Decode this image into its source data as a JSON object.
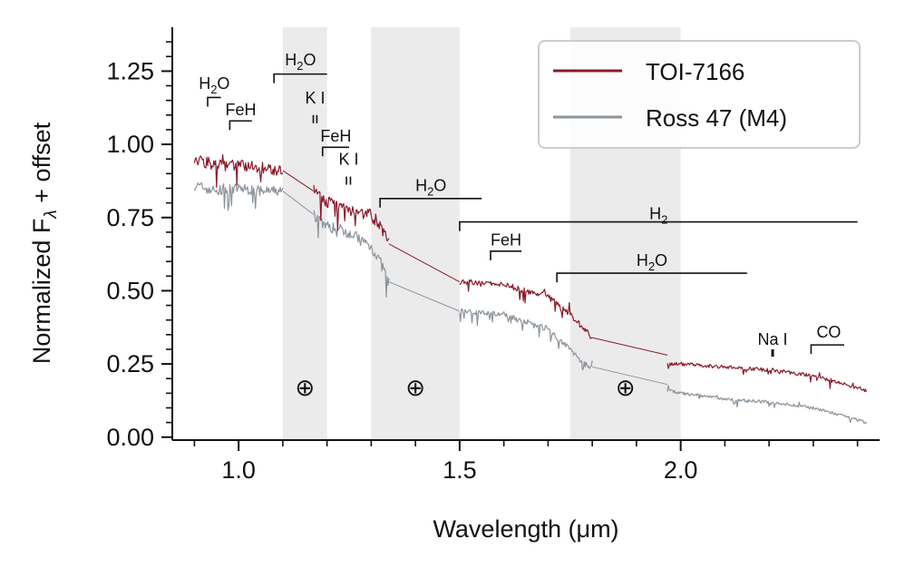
{
  "chart_data": {
    "type": "line",
    "xlabel": "Wavelength (μm)",
    "ylabel": "Normalized F",
    "ylabel_sub": "λ",
    "ylabel_suffix": " + offset",
    "xlim": [
      0.85,
      2.45
    ],
    "ylim": [
      -0.01,
      1.4
    ],
    "x_ticks": [
      1.0,
      1.5,
      2.0
    ],
    "x_tick_labels": [
      "1.0",
      "1.5",
      "2.0"
    ],
    "x_minor_ticks": [
      0.9,
      1.1,
      1.2,
      1.3,
      1.4,
      1.6,
      1.7,
      1.8,
      1.9,
      2.1,
      2.2,
      2.3,
      2.4
    ],
    "y_ticks": [
      0.0,
      0.25,
      0.5,
      0.75,
      1.0,
      1.25
    ],
    "y_tick_labels": [
      "0.00",
      "0.25",
      "0.50",
      "0.75",
      "1.00",
      "1.25"
    ],
    "y_minor_ticks": [
      0.05,
      0.1,
      0.15,
      0.2,
      0.3,
      0.35,
      0.4,
      0.45,
      0.55,
      0.6,
      0.65,
      0.7,
      0.8,
      0.85,
      0.9,
      0.95,
      1.05,
      1.1,
      1.15,
      1.2,
      1.3,
      1.35
    ],
    "telluric_bands": [
      [
        1.1,
        1.2
      ],
      [
        1.3,
        1.5
      ],
      [
        1.75,
        2.0
      ]
    ],
    "telluric_symbols": [
      {
        "x": 1.15,
        "y": 0.17,
        "text": "⊕"
      },
      {
        "x": 1.4,
        "y": 0.17,
        "text": "⊕"
      },
      {
        "x": 1.875,
        "y": 0.17,
        "text": "⊕"
      }
    ],
    "series": [
      {
        "name": "TOI-7166",
        "color": "#8b1a2b",
        "segments": [
          {
            "x": [
              0.9,
              0.95,
              1.0,
              1.05,
              1.1
            ],
            "y": [
              0.95,
              0.93,
              0.93,
              0.92,
              0.91
            ],
            "noise": 0.04,
            "step": 0.002
          },
          {
            "x": [
              1.1,
              1.17
            ],
            "y": [
              0.91,
              0.84
            ]
          },
          {
            "x": [
              1.17,
              1.2,
              1.25,
              1.3,
              1.32,
              1.34
            ],
            "y": [
              0.84,
              0.8,
              0.78,
              0.76,
              0.72,
              0.66
            ],
            "noise": 0.045,
            "step": 0.002
          },
          {
            "x": [
              1.34,
              1.5
            ],
            "y": [
              0.66,
              0.53
            ]
          },
          {
            "x": [
              1.5,
              1.6,
              1.7,
              1.75,
              1.78,
              1.8
            ],
            "y": [
              0.53,
              0.52,
              0.48,
              0.42,
              0.37,
              0.34
            ],
            "noise": 0.02,
            "step": 0.002
          },
          {
            "x": [
              1.8,
              1.97
            ],
            "y": [
              0.34,
              0.28
            ]
          },
          {
            "x": [
              1.97,
              2.0,
              2.1,
              2.2,
              2.3,
              2.42
            ],
            "y": [
              0.25,
              0.25,
              0.24,
              0.23,
              0.21,
              0.16
            ],
            "noise": 0.012,
            "step": 0.002
          }
        ]
      },
      {
        "name": "Ross 47 (M4)",
        "color": "#8c949c",
        "segments": [
          {
            "x": [
              0.9,
              0.95,
              1.0,
              1.05,
              1.1
            ],
            "y": [
              0.86,
              0.84,
              0.85,
              0.84,
              0.84
            ],
            "noise": 0.035,
            "step": 0.002
          },
          {
            "x": [
              1.1,
              1.17
            ],
            "y": [
              0.84,
              0.76
            ]
          },
          {
            "x": [
              1.17,
              1.2,
              1.25,
              1.3,
              1.32,
              1.34
            ],
            "y": [
              0.76,
              0.72,
              0.7,
              0.65,
              0.6,
              0.53
            ],
            "noise": 0.04,
            "step": 0.002
          },
          {
            "x": [
              1.34,
              1.5
            ],
            "y": [
              0.53,
              0.43
            ]
          },
          {
            "x": [
              1.5,
              1.6,
              1.7,
              1.75,
              1.78,
              1.8
            ],
            "y": [
              0.43,
              0.42,
              0.37,
              0.3,
              0.25,
              0.24
            ],
            "noise": 0.018,
            "step": 0.002
          },
          {
            "x": [
              1.8,
              1.97
            ],
            "y": [
              0.24,
              0.18
            ]
          },
          {
            "x": [
              1.97,
              2.0,
              2.1,
              2.2,
              2.3,
              2.42
            ],
            "y": [
              0.16,
              0.15,
              0.13,
              0.12,
              0.1,
              0.05
            ],
            "noise": 0.01,
            "step": 0.002
          }
        ]
      }
    ],
    "absorption_features": [
      {
        "label_main": "H",
        "label_sub": "2",
        "label_tail": "O",
        "kind": "bracket",
        "x0": 0.93,
        "x1": 0.96,
        "y": 1.16,
        "label_x": 0.945,
        "label_y": 1.19
      },
      {
        "label_main": "FeH",
        "kind": "bracket",
        "x0": 0.98,
        "x1": 1.03,
        "y": 1.08,
        "label_x": 1.005,
        "label_y": 1.1
      },
      {
        "label_main": "H",
        "label_sub": "2",
        "label_tail": "O",
        "kind": "bracket",
        "x0": 1.08,
        "x1": 1.2,
        "y": 1.24,
        "label_x": 1.14,
        "label_y": 1.27
      },
      {
        "label_main": "K I",
        "kind": "doublet",
        "lines": [
          1.169,
          1.177
        ],
        "y": 1.1,
        "label_x": 1.173,
        "label_y": 1.14
      },
      {
        "label_main": "FeH",
        "kind": "bracket",
        "x0": 1.19,
        "x1": 1.25,
        "y": 0.99,
        "label_x": 1.22,
        "label_y": 1.01
      },
      {
        "label_main": "K I",
        "kind": "doublet",
        "lines": [
          1.244,
          1.253
        ],
        "y": 0.89,
        "label_x": 1.249,
        "label_y": 0.93
      },
      {
        "label_main": "H",
        "label_sub": "2",
        "label_tail": "O",
        "kind": "bracket",
        "x0": 1.32,
        "x1": 1.55,
        "y": 0.815,
        "label_x": 1.435,
        "label_y": 0.84
      },
      {
        "label_main": "H",
        "label_sub": "2",
        "kind": "bracket",
        "x0": 1.5,
        "x1": 2.4,
        "y": 0.735,
        "label_x": 1.95,
        "label_y": 0.745
      },
      {
        "label_main": "FeH",
        "kind": "bracket",
        "x0": 1.57,
        "x1": 1.64,
        "y": 0.635,
        "label_x": 1.605,
        "label_y": 0.655
      },
      {
        "label_main": "H",
        "label_sub": "2",
        "label_tail": "O",
        "kind": "bracket",
        "x0": 1.72,
        "x1": 2.15,
        "y": 0.56,
        "label_x": 1.935,
        "label_y": 0.585
      },
      {
        "label_main": "Na I",
        "kind": "tick",
        "x0": 2.208,
        "y0": 0.275,
        "y1": 0.3,
        "label_x": 2.208,
        "label_y": 0.315
      },
      {
        "label_main": "CO",
        "kind": "bracket",
        "x0": 2.295,
        "x1": 2.37,
        "y": 0.315,
        "label_x": 2.335,
        "label_y": 0.34
      }
    ],
    "legend": {
      "position": "top-right",
      "entries": [
        "TOI-7166",
        "Ross 47 (M4)"
      ]
    }
  }
}
